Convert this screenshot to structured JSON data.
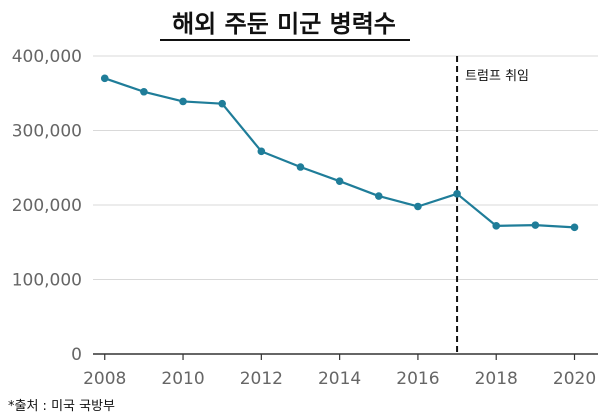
{
  "chart_data": {
    "type": "line",
    "title": "해외 주둔 미군 병력수",
    "xlabel": "",
    "ylabel": "",
    "x": [
      2008,
      2009,
      2010,
      2011,
      2012,
      2013,
      2014,
      2015,
      2016,
      2017,
      2018,
      2019,
      2020
    ],
    "series": [
      {
        "values": [
          370000,
          352000,
          339000,
          336000,
          272000,
          251000,
          232000,
          212000,
          198000,
          215000,
          172000,
          173000,
          170000
        ]
      }
    ],
    "x_ticks": [
      "2008",
      "2010",
      "2012",
      "2014",
      "2016",
      "2018",
      "2020"
    ],
    "y_ticks": [
      "0",
      "100,000",
      "200,000",
      "300,000",
      "400,000"
    ],
    "ylim": [
      0,
      400000
    ],
    "xlim": [
      2007.7,
      2020.6
    ],
    "grid": "horizontal",
    "line_color": "#1f7d99",
    "annotation": {
      "x": 2017,
      "label": "트럼프 취임"
    },
    "source": "*출처 :  미국 국방부"
  }
}
